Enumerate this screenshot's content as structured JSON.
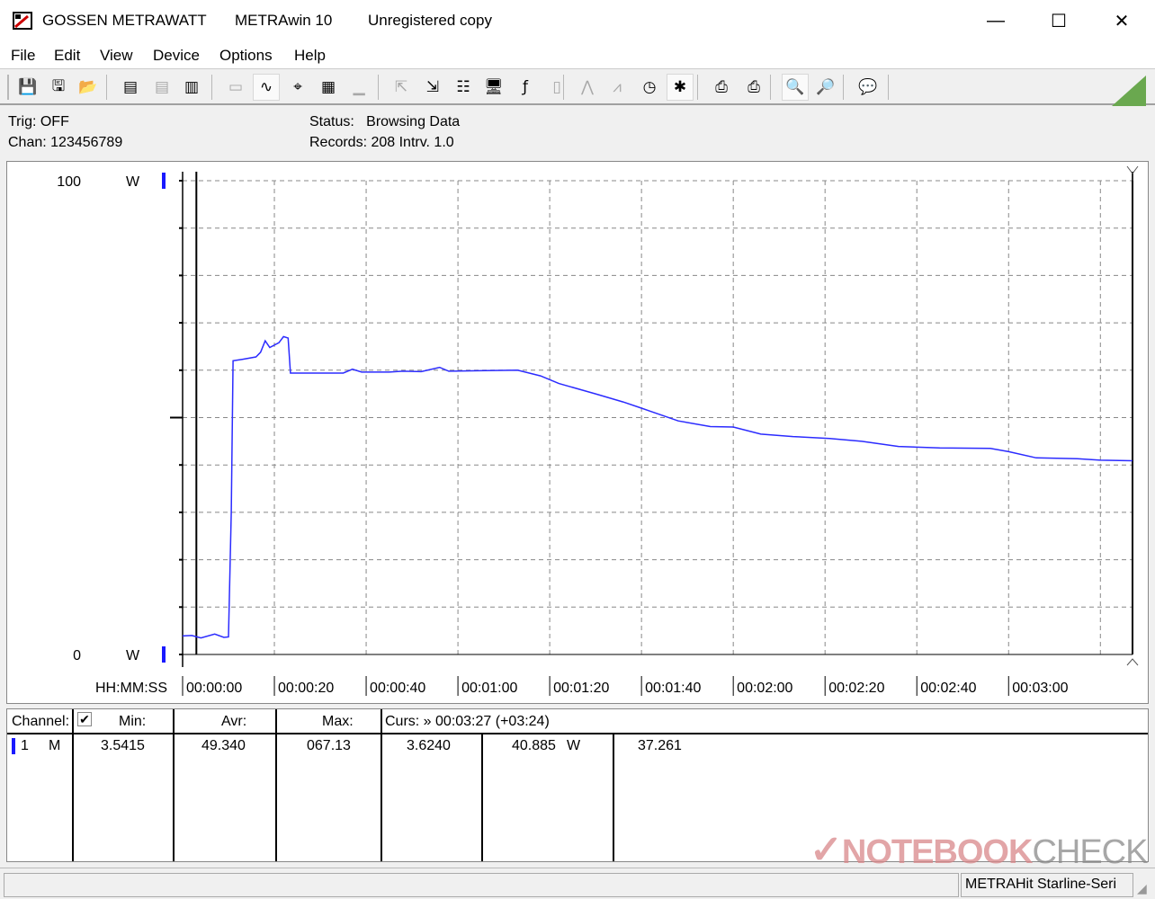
{
  "window": {
    "title_company": "GOSSEN METRAWATT",
    "title_app": "METRAwin 10",
    "title_note": "Unregistered copy",
    "minimize": "—",
    "maximize": "☐",
    "close": "✕"
  },
  "menu": [
    "File",
    "Edit",
    "View",
    "Device",
    "Options",
    "Help"
  ],
  "toolbar": [
    {
      "icon": "save-data-icon",
      "glyph": "💾",
      "state": "normal"
    },
    {
      "icon": "save-as-icon",
      "glyph": "🖫",
      "state": "normal"
    },
    {
      "icon": "open-folder-icon",
      "glyph": "📂",
      "state": "normal"
    },
    {
      "icon": "read-memory-icon",
      "glyph": "▤",
      "state": "normal"
    },
    {
      "icon": "clear-memory-icon",
      "glyph": "▤",
      "state": "disabled"
    },
    {
      "icon": "read-m-icon",
      "glyph": "▥",
      "state": "normal"
    },
    {
      "icon": "numeric-display-icon",
      "glyph": "▭",
      "state": "disabled"
    },
    {
      "icon": "waveform-view-icon",
      "glyph": "∿",
      "state": "active"
    },
    {
      "icon": "crosshair-icon",
      "glyph": "⌖",
      "state": "normal"
    },
    {
      "icon": "table-view-icon",
      "glyph": "▦",
      "state": "normal"
    },
    {
      "icon": "bar-view-icon",
      "glyph": "▁",
      "state": "disabled"
    },
    {
      "icon": "export-icon",
      "glyph": "⇱",
      "state": "disabled"
    },
    {
      "icon": "import-icon",
      "glyph": "⇲",
      "state": "normal"
    },
    {
      "icon": "settings-bits-icon",
      "glyph": "☷",
      "state": "normal"
    },
    {
      "icon": "monitor-icon",
      "glyph": "🖥",
      "state": "normal"
    },
    {
      "icon": "function-icon",
      "glyph": "ƒ",
      "state": "normal"
    },
    {
      "icon": "meter-icon",
      "glyph": "▯",
      "state": "disabled"
    },
    {
      "icon": "trigger-wave-icon",
      "glyph": "⋀",
      "state": "disabled"
    },
    {
      "icon": "trigger-wave2-icon",
      "glyph": "⩘",
      "state": "disabled"
    },
    {
      "icon": "clock-icon",
      "glyph": "◷",
      "state": "normal"
    },
    {
      "icon": "bug-icon",
      "glyph": "✱",
      "state": "active"
    },
    {
      "icon": "print-chart-icon",
      "glyph": "⎙",
      "state": "normal"
    },
    {
      "icon": "print-icon",
      "glyph": "⎙",
      "state": "normal"
    },
    {
      "icon": "zoom-wave-icon",
      "glyph": "🔍",
      "state": "active"
    },
    {
      "icon": "zoom-cursor-icon",
      "glyph": "🔎",
      "state": "normal"
    },
    {
      "icon": "speech-bubble-icon",
      "glyph": "💬",
      "state": "normal"
    }
  ],
  "info": {
    "trig": "Trig: OFF",
    "chan": "Chan:  123456789",
    "status_label": "Status:",
    "status_value": "Browsing Data",
    "records": "Records: 208  Intrv. 1.0"
  },
  "chart_data": {
    "type": "line",
    "y_top_label": "100",
    "y_bottom_label": "0",
    "y_unit": "W",
    "ylim": [
      0,
      100
    ],
    "x_axis_label": "HH:MM:SS",
    "xlim_seconds": [
      0,
      207
    ],
    "x_tick_labels": [
      "00:00:00",
      "00:00:20",
      "00:00:40",
      "00:01:00",
      "00:01:20",
      "00:01:40",
      "00:02:00",
      "00:02:20",
      "00:02:40",
      "00:03:00"
    ],
    "x_tick_seconds": [
      0,
      20,
      40,
      60,
      80,
      100,
      120,
      140,
      160,
      180
    ],
    "grid": true,
    "line_color": "#2b2bff",
    "cursors_seconds": [
      3,
      207
    ],
    "series": [
      {
        "x": [
          0,
          2,
          4,
          7,
          9,
          10,
          10.6,
          11,
          13,
          16,
          17,
          18,
          19,
          21,
          22,
          23,
          23.5,
          35,
          37,
          39,
          45,
          48,
          52,
          56,
          58,
          66,
          73,
          78,
          82,
          90,
          96,
          100,
          102,
          108,
          115,
          120,
          126,
          133,
          141,
          148,
          156,
          165,
          176,
          180,
          186,
          195,
          200,
          207
        ],
        "y": [
          3.9,
          4.0,
          3.5,
          4.3,
          3.6,
          3.7,
          30,
          62.0,
          62.3,
          62.8,
          63.8,
          66.2,
          64.8,
          65.8,
          67.1,
          66.8,
          59.4,
          59.4,
          60.2,
          59.6,
          59.6,
          59.8,
          59.7,
          60.6,
          59.8,
          59.9,
          60.0,
          58.8,
          57.2,
          55.0,
          53.3,
          52.0,
          51.3,
          49.3,
          48.1,
          48.0,
          46.5,
          46.0,
          45.6,
          45.0,
          43.9,
          43.6,
          43.5,
          42.8,
          41.5,
          41.3,
          41.0,
          40.9
        ]
      }
    ]
  },
  "table": {
    "h_channel": "Channel:",
    "h_min": "Min:",
    "h_avr": "Avr:",
    "h_max": "Max:",
    "h_curs": "Curs: » 00:03:27 (+03:24)",
    "row": {
      "ch": "1",
      "mode": "M",
      "min": "3.5415",
      "avr": "49.340",
      "max": "067.13",
      "c1": "3.6240",
      "c2": "40.885",
      "unit": "W",
      "diff": "37.261"
    }
  },
  "status": {
    "device": "METRAHit Starline-Seri"
  },
  "watermark": {
    "a": "NOTEBOOK",
    "b": "CHECK"
  }
}
